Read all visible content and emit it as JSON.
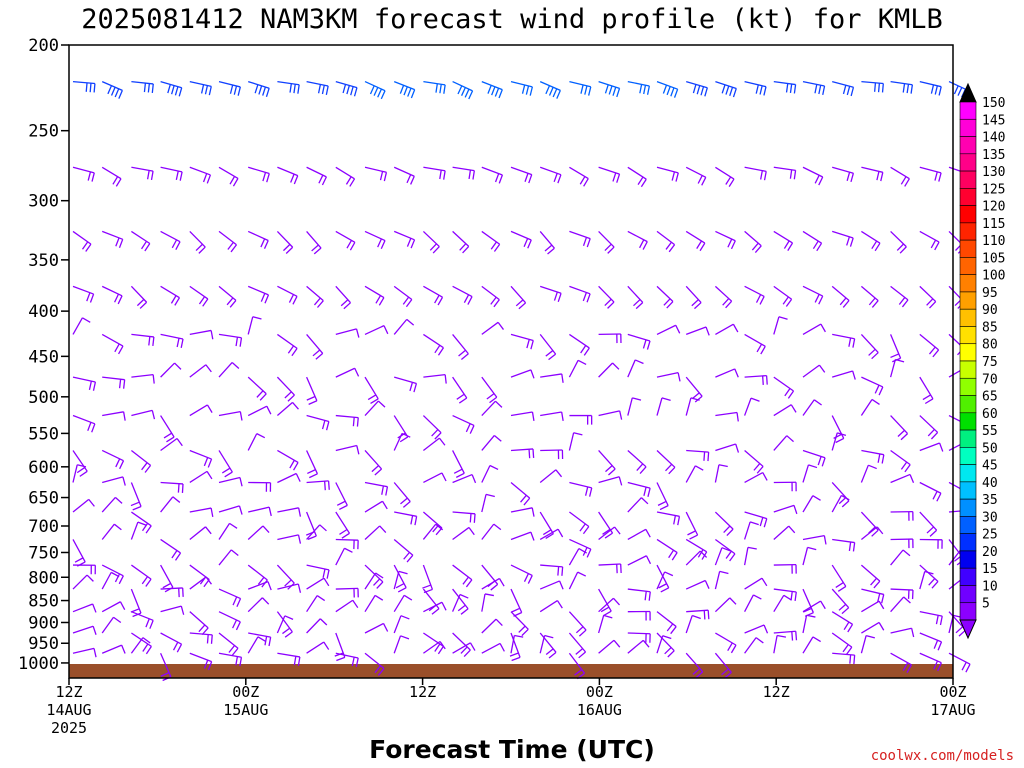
{
  "chart_data": {
    "type": "wind-barb-profile",
    "title": "2025081412 NAM3KM forecast wind profile (kt) for KMLB",
    "xlabel": "Forecast Time (UTC)",
    "ylabel": "",
    "credit": "coolwx.com/models",
    "y_axis": {
      "scale": "log-pressure",
      "ticks": [
        200,
        250,
        300,
        350,
        400,
        450,
        500,
        550,
        600,
        650,
        700,
        750,
        800,
        850,
        900,
        950,
        1000
      ],
      "ylim": [
        1040,
        200
      ]
    },
    "x_axis": {
      "ticks": [
        {
          "line1": "12Z",
          "line2": "14AUG",
          "line3": "2025"
        },
        {
          "line1": "00Z",
          "line2": "15AUG",
          "line3": ""
        },
        {
          "line1": "12Z",
          "line2": "",
          "line3": ""
        },
        {
          "line1": "00Z",
          "line2": "16AUG",
          "line3": ""
        },
        {
          "line1": "12Z",
          "line2": "",
          "line3": ""
        },
        {
          "line1": "00Z",
          "line2": "17AUG",
          "line3": ""
        }
      ],
      "forecast_hours": [
        0,
        60
      ]
    },
    "colorbar": {
      "unit": "kt",
      "labels": [
        "150",
        "145",
        "140",
        "135",
        "130",
        "125",
        "120",
        "115",
        "110",
        "105",
        "100",
        "95",
        "90",
        "85",
        "80",
        "75",
        "70",
        "65",
        "60",
        "55",
        "50",
        "45",
        "40",
        "35",
        "30",
        "25",
        "20",
        "15",
        "10",
        "5"
      ],
      "colors": [
        "#ff00ff",
        "#ff00d8",
        "#ff00b0",
        "#ff0088",
        "#ff0060",
        "#ff0030",
        "#ff0000",
        "#ff2400",
        "#ff4800",
        "#ff6400",
        "#ff8000",
        "#ffa000",
        "#ffc000",
        "#ffe000",
        "#ffff00",
        "#c8ff00",
        "#90ff00",
        "#50f000",
        "#00e000",
        "#00f080",
        "#00ffc0",
        "#00e8f0",
        "#00c0ff",
        "#0090ff",
        "#0060ff",
        "#0030ff",
        "#0000f0",
        "#4000ff",
        "#7000ff",
        "#8c00ff"
      ],
      "top_triangle": "#000000",
      "bottom_triangle": "#8c00ff"
    },
    "barb_levels_hpa": [
      220,
      275,
      325,
      375,
      425,
      475,
      525,
      575,
      625,
      675,
      725,
      775,
      825,
      875,
      925,
      975,
      1025
    ],
    "colors": {
      "light_barb": "#8c00ff",
      "strong_barb": "#0060ff",
      "ground": "#9a4f2a"
    }
  }
}
